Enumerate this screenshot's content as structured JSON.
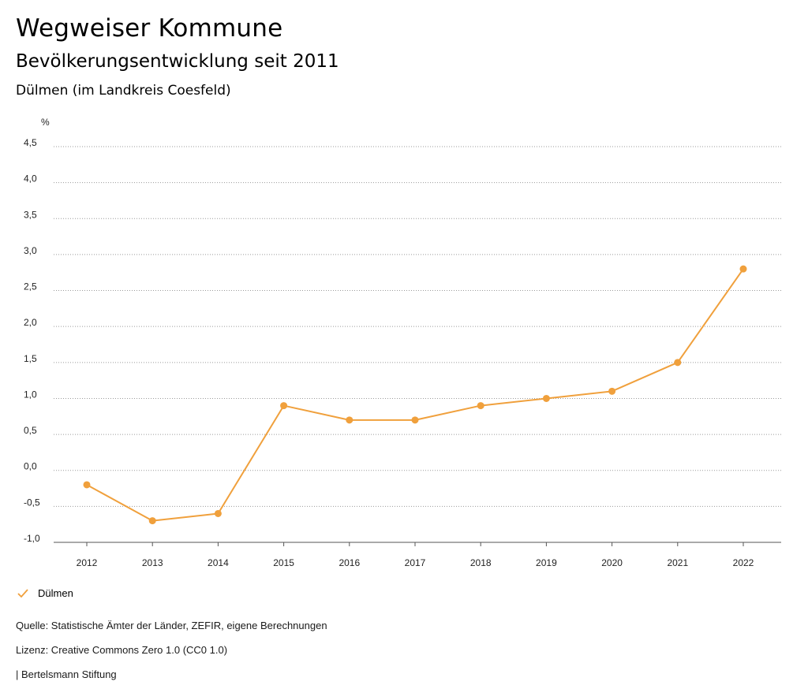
{
  "header": {
    "title": "Wegweiser Kommune",
    "subtitle": "Bevölkerungsentwicklung seit 2011",
    "region": "Dülmen (im Landkreis Coesfeld)"
  },
  "chart_data": {
    "type": "line",
    "title": "Bevölkerungsentwicklung seit 2011",
    "ylabel": "%",
    "xlabel": "",
    "categories": [
      "2012",
      "2013",
      "2014",
      "2015",
      "2016",
      "2017",
      "2018",
      "2019",
      "2020",
      "2021",
      "2022"
    ],
    "series": [
      {
        "name": "Dülmen",
        "values": [
          -0.2,
          -0.7,
          -0.6,
          0.9,
          0.7,
          0.7,
          0.9,
          1.0,
          1.1,
          1.5,
          2.8
        ]
      }
    ],
    "ylim": [
      -1.0,
      4.5
    ],
    "yticks": [
      -1.0,
      -0.5,
      0.0,
      0.5,
      1.0,
      1.5,
      2.0,
      2.5,
      3.0,
      3.5,
      4.0,
      4.5
    ],
    "ytick_labels": [
      "-1,0",
      "-0,5",
      "0,0",
      "0,5",
      "1,0",
      "1,5",
      "2,0",
      "2,5",
      "3,0",
      "3,5",
      "4,0",
      "4,5"
    ],
    "grid": true,
    "legend_position": "bottom-left",
    "color": "#f0a03c"
  },
  "legend": {
    "label": "Dülmen"
  },
  "footer": {
    "source": "Quelle: Statistische Ämter der Länder, ZEFIR, eigene Berechnungen",
    "license": "Lizenz: Creative Commons Zero 1.0 (CC0 1.0)",
    "brand": "| Bertelsmann Stiftung"
  }
}
